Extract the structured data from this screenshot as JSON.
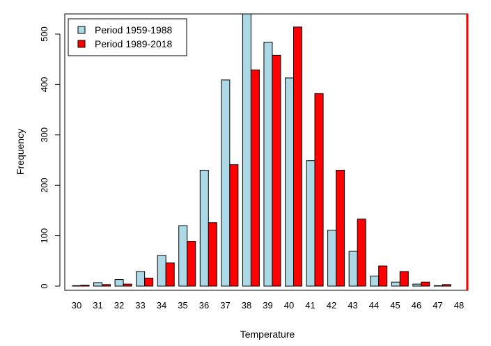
{
  "chart_data": {
    "type": "bar",
    "title": "",
    "xlabel": "Temperature",
    "ylabel": "Frequency",
    "ylim": [
      0,
      540
    ],
    "yticks": [
      0,
      100,
      200,
      300,
      400,
      500
    ],
    "categories": [
      "30",
      "31",
      "32",
      "33",
      "34",
      "35",
      "36",
      "37",
      "38",
      "39",
      "40",
      "41",
      "42",
      "43",
      "44",
      "45",
      "46",
      "47",
      "48"
    ],
    "series": [
      {
        "name": "Period 1959-1988",
        "color": "#add8e6",
        "values": [
          1,
          7,
          13,
          29,
          61,
          120,
          230,
          409,
          540,
          484,
          413,
          249,
          111,
          69,
          20,
          8,
          4,
          1,
          0
        ]
      },
      {
        "name": "Period 1989-2018",
        "color": "#ff0000",
        "values": [
          2,
          3,
          4,
          16,
          46,
          89,
          126,
          241,
          429,
          458,
          514,
          382,
          230,
          133,
          40,
          29,
          8,
          3,
          0
        ]
      }
    ],
    "reference_line": {
      "x": "48",
      "color": "#ff0000"
    },
    "legend_position": "top-left",
    "grid": false
  }
}
